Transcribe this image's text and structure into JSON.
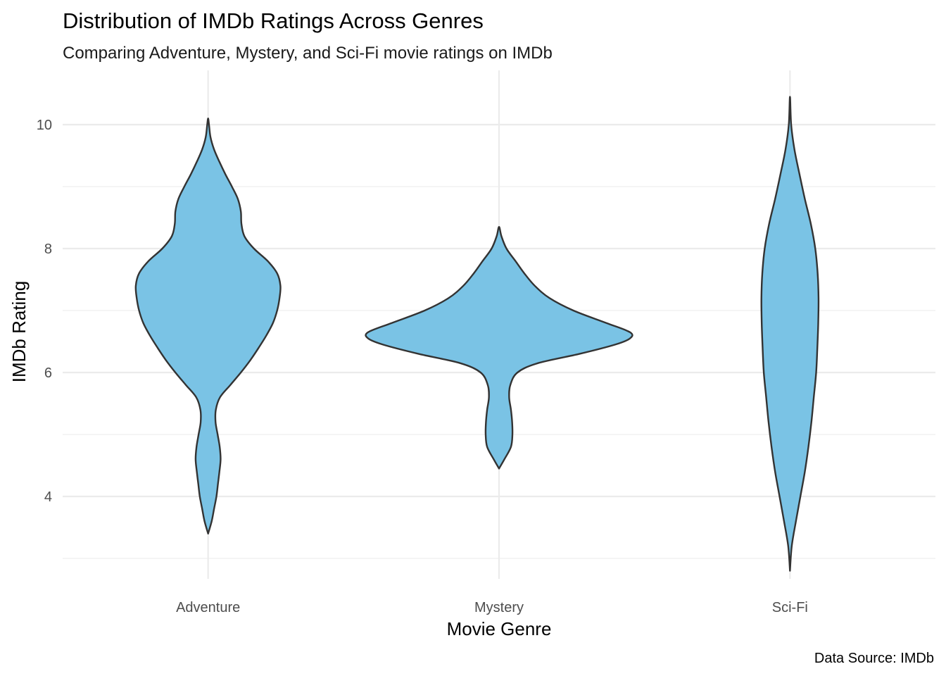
{
  "chart_data": {
    "type": "violin",
    "title": "Distribution of IMDb Ratings Across Genres",
    "subtitle": "Comparing Adventure, Mystery, and Sci-Fi movie ratings on IMDb",
    "xlabel": "Movie Genre",
    "ylabel": "IMDb Rating",
    "caption": "Data Source: IMDb",
    "categories": [
      "Adventure",
      "Mystery",
      "Sci-Fi"
    ],
    "y_ticks": [
      4,
      6,
      8,
      10
    ],
    "y_minor_ticks": [
      3,
      5,
      7,
      9
    ],
    "ylim": [
      2.6,
      10.8
    ],
    "grid": true,
    "fill_color": "#7AC3E5",
    "outline_color": "#333333",
    "violin_width_scale": 0.45,
    "series": [
      {
        "category": "Adventure",
        "min": 3.4,
        "max": 10.1,
        "density": [
          [
            3.4,
            0.0
          ],
          [
            3.6,
            0.012
          ],
          [
            3.8,
            0.02
          ],
          [
            4.0,
            0.028
          ],
          [
            4.2,
            0.033
          ],
          [
            4.4,
            0.038
          ],
          [
            4.6,
            0.042
          ],
          [
            4.8,
            0.039
          ],
          [
            5.0,
            0.032
          ],
          [
            5.2,
            0.025
          ],
          [
            5.4,
            0.026
          ],
          [
            5.6,
            0.04
          ],
          [
            5.8,
            0.075
          ],
          [
            6.0,
            0.11
          ],
          [
            6.2,
            0.142
          ],
          [
            6.4,
            0.17
          ],
          [
            6.6,
            0.196
          ],
          [
            6.8,
            0.218
          ],
          [
            7.0,
            0.232
          ],
          [
            7.2,
            0.24
          ],
          [
            7.4,
            0.243
          ],
          [
            7.6,
            0.232
          ],
          [
            7.8,
            0.2
          ],
          [
            8.0,
            0.154
          ],
          [
            8.2,
            0.122
          ],
          [
            8.4,
            0.112
          ],
          [
            8.6,
            0.11
          ],
          [
            8.8,
            0.1
          ],
          [
            9.0,
            0.08
          ],
          [
            9.2,
            0.058
          ],
          [
            9.4,
            0.038
          ],
          [
            9.6,
            0.02
          ],
          [
            9.8,
            0.008
          ],
          [
            10.0,
            0.003
          ],
          [
            10.1,
            0.0
          ]
        ]
      },
      {
        "category": "Mystery",
        "min": 4.45,
        "max": 8.35,
        "density": [
          [
            4.45,
            0.0
          ],
          [
            4.6,
            0.018
          ],
          [
            4.8,
            0.04
          ],
          [
            5.0,
            0.045
          ],
          [
            5.2,
            0.044
          ],
          [
            5.4,
            0.04
          ],
          [
            5.6,
            0.034
          ],
          [
            5.8,
            0.038
          ],
          [
            6.0,
            0.062
          ],
          [
            6.15,
            0.13
          ],
          [
            6.3,
            0.27
          ],
          [
            6.45,
            0.39
          ],
          [
            6.55,
            0.44
          ],
          [
            6.65,
            0.44
          ],
          [
            6.8,
            0.36
          ],
          [
            7.0,
            0.25
          ],
          [
            7.2,
            0.17
          ],
          [
            7.4,
            0.12
          ],
          [
            7.6,
            0.085
          ],
          [
            7.8,
            0.055
          ],
          [
            8.0,
            0.025
          ],
          [
            8.2,
            0.008
          ],
          [
            8.35,
            0.0
          ]
        ]
      },
      {
        "category": "Sci-Fi",
        "min": 2.8,
        "max": 10.45,
        "density": [
          [
            2.8,
            0.0
          ],
          [
            3.2,
            0.006
          ],
          [
            3.6,
            0.02
          ],
          [
            4.0,
            0.035
          ],
          [
            4.4,
            0.05
          ],
          [
            4.8,
            0.062
          ],
          [
            5.2,
            0.072
          ],
          [
            5.6,
            0.08
          ],
          [
            6.0,
            0.088
          ],
          [
            6.4,
            0.092
          ],
          [
            6.8,
            0.095
          ],
          [
            7.2,
            0.096
          ],
          [
            7.6,
            0.093
          ],
          [
            8.0,
            0.085
          ],
          [
            8.4,
            0.07
          ],
          [
            8.8,
            0.05
          ],
          [
            9.2,
            0.032
          ],
          [
            9.6,
            0.015
          ],
          [
            10.0,
            0.004
          ],
          [
            10.45,
            0.0
          ]
        ]
      }
    ]
  }
}
